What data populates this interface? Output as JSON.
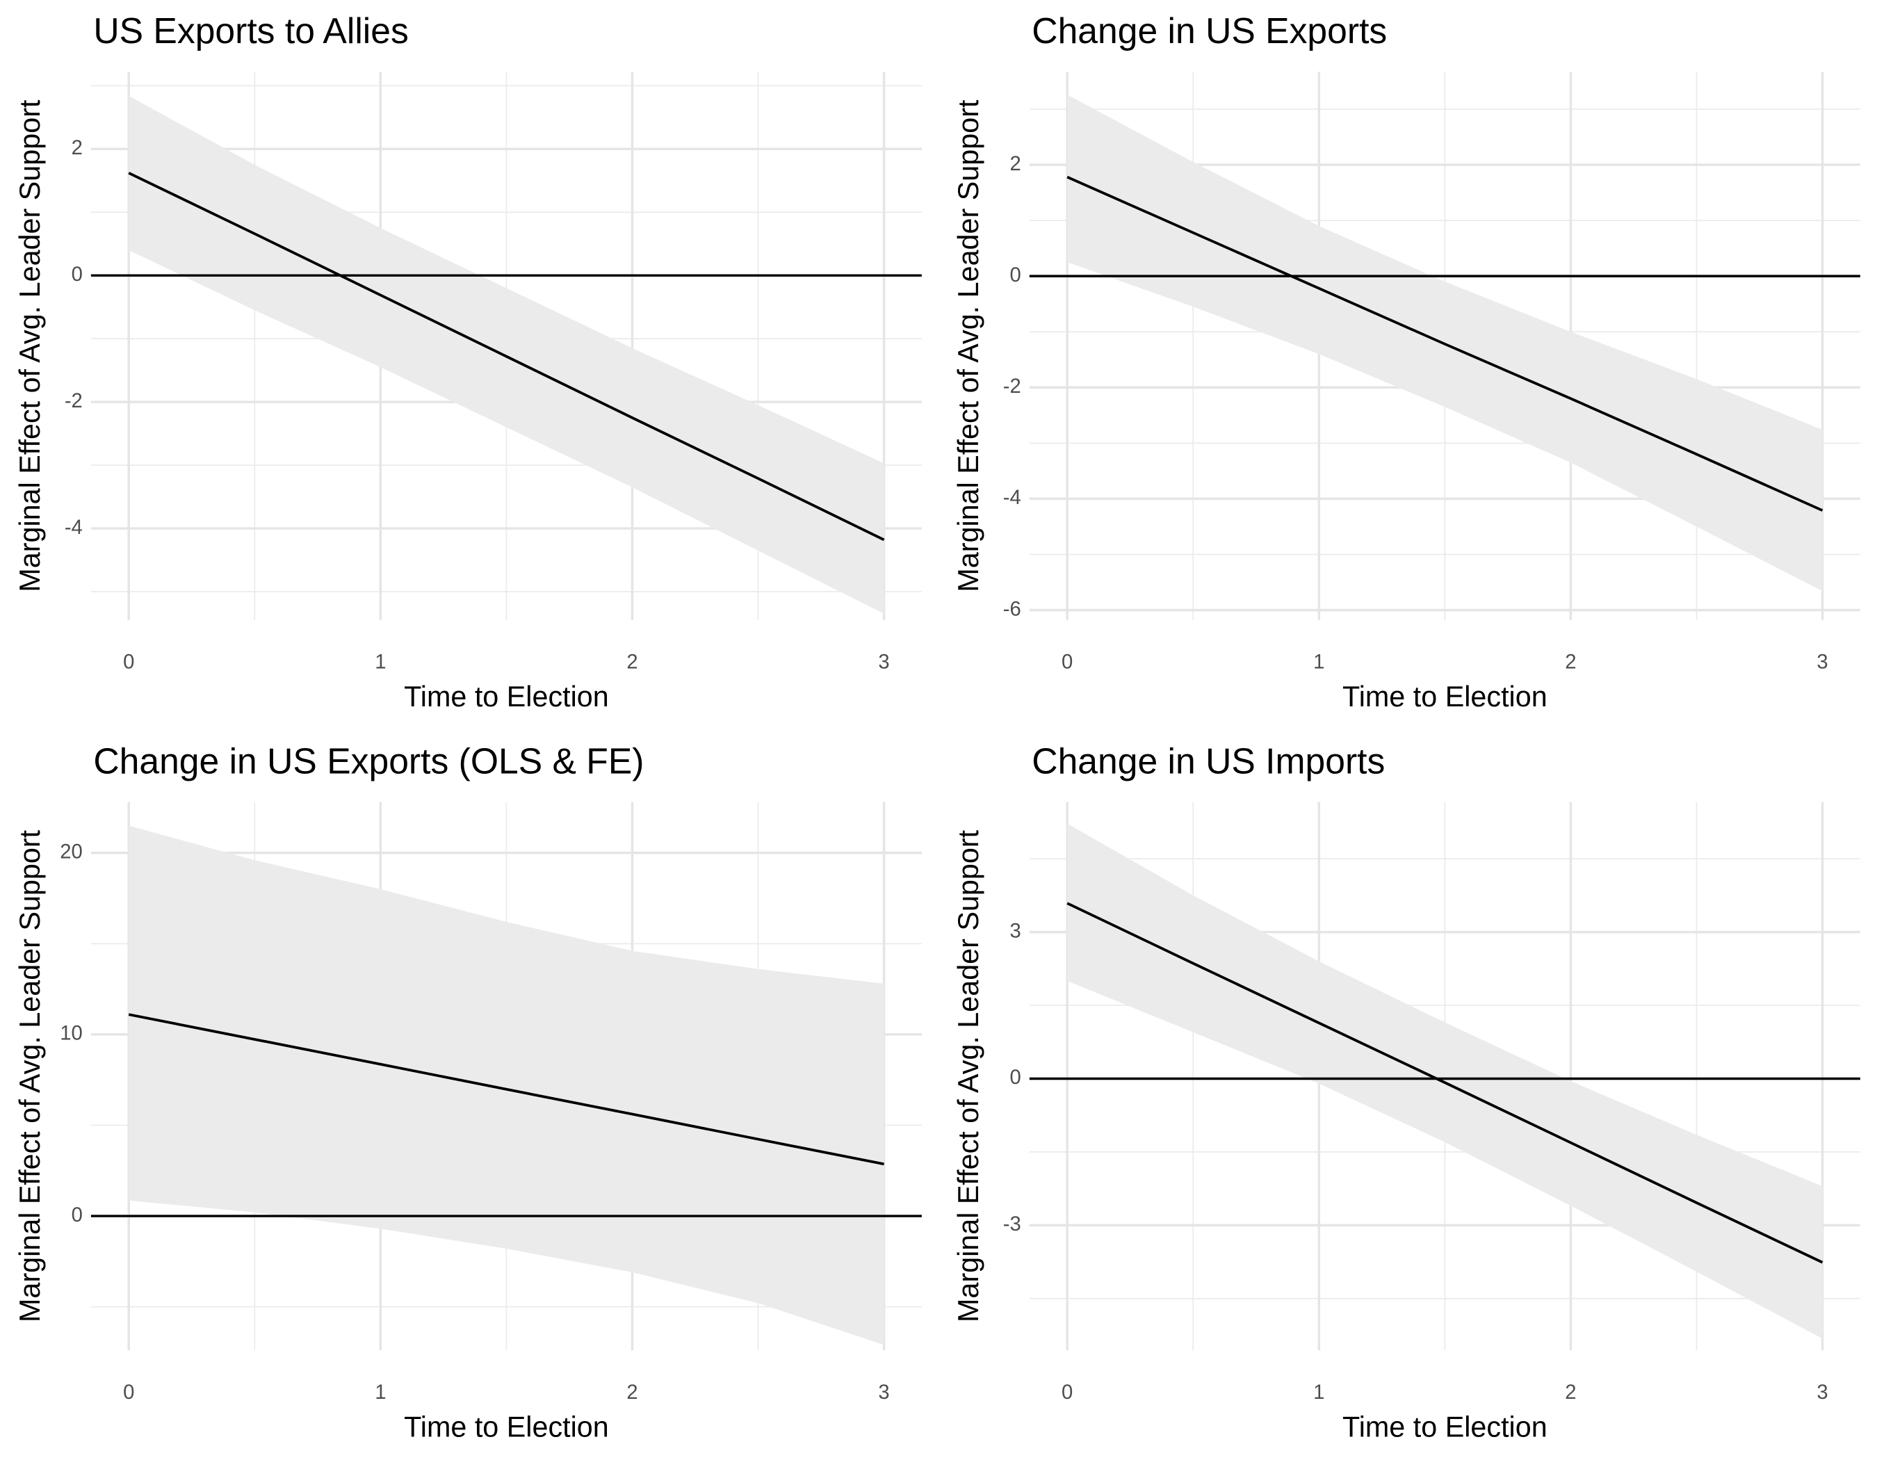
{
  "chart_data": [
    {
      "type": "line",
      "title": "US Exports to Allies",
      "xlabel": "Time to Election",
      "ylabel": "Marginal Effect of Avg. Leader Support",
      "x": [
        0,
        0.5,
        1,
        1.5,
        2,
        2.5,
        3
      ],
      "values": [
        1.62,
        0.66,
        -0.31,
        -1.28,
        -2.25,
        -3.21,
        -4.18
      ],
      "upper": [
        2.84,
        1.75,
        0.75,
        -0.2,
        -1.15,
        -2.05,
        -2.97
      ],
      "lower": [
        0.4,
        -0.55,
        -1.45,
        -2.4,
        -3.35,
        -4.35,
        -5.35
      ],
      "color": "#000000",
      "band_color": "#ebebeb",
      "hline": 0,
      "xlim": [
        -0.15,
        3.15
      ],
      "ylim": [
        -5.45,
        3.22
      ],
      "xticks": [
        0,
        1,
        2,
        3
      ],
      "yticks": [
        -4,
        -2,
        0,
        2
      ],
      "xminor": [
        0.5,
        1.5,
        2.5
      ],
      "yminor": [
        -5,
        -3,
        -1,
        1,
        3
      ],
      "grid": true
    },
    {
      "type": "line",
      "title": "Change in US Exports",
      "xlabel": "Time to Election",
      "ylabel": "Marginal Effect of Avg. Leader Support",
      "x": [
        0,
        0.5,
        1,
        1.5,
        2,
        2.5,
        3
      ],
      "values": [
        1.78,
        0.78,
        -0.22,
        -1.22,
        -2.2,
        -3.2,
        -4.21
      ],
      "upper": [
        3.26,
        2.05,
        0.9,
        -0.1,
        -1.0,
        -1.85,
        -2.76
      ],
      "lower": [
        0.25,
        -0.55,
        -1.4,
        -2.35,
        -3.35,
        -4.5,
        -5.66
      ],
      "color": "#000000",
      "band_color": "#ebebeb",
      "hline": 0,
      "xlim": [
        -0.15,
        3.15
      ],
      "ylim": [
        -6.18,
        3.67
      ],
      "xticks": [
        0,
        1,
        2,
        3
      ],
      "yticks": [
        -6,
        -4,
        -2,
        0,
        2
      ],
      "xminor": [
        0.5,
        1.5,
        2.5
      ],
      "yminor": [
        -5,
        -3,
        -1,
        1,
        3
      ],
      "grid": true
    },
    {
      "type": "line",
      "title": "Change in US Exports (OLS & FE)",
      "xlabel": "Time to Election",
      "ylabel": "Marginal Effect of Avg. Leader Support",
      "x": [
        0,
        0.5,
        1,
        1.5,
        2,
        2.5,
        3
      ],
      "values": [
        11.1,
        9.73,
        8.36,
        6.98,
        5.61,
        4.23,
        2.86
      ],
      "upper": [
        21.5,
        19.6,
        18.0,
        16.2,
        14.6,
        13.6,
        12.8
      ],
      "lower": [
        0.85,
        0.2,
        -0.7,
        -1.8,
        -3.1,
        -4.8,
        -7.1
      ],
      "color": "#000000",
      "band_color": "#ebebeb",
      "hline": 0,
      "xlim": [
        -0.15,
        3.15
      ],
      "ylim": [
        -7.4,
        22.8
      ],
      "xticks": [
        0,
        1,
        2,
        3
      ],
      "yticks": [
        0,
        10,
        20
      ],
      "xminor": [
        0.5,
        1.5,
        2.5
      ],
      "yminor": [
        -5,
        5,
        15
      ],
      "grid": true
    },
    {
      "type": "line",
      "title": "Change in US Imports",
      "xlabel": "Time to Election",
      "ylabel": "Marginal Effect of Avg. Leader Support",
      "x": [
        0,
        0.5,
        1,
        1.5,
        2,
        2.5,
        3
      ],
      "values": [
        3.59,
        2.36,
        1.14,
        -0.08,
        -1.31,
        -2.54,
        -3.76
      ],
      "upper": [
        5.22,
        3.75,
        2.4,
        1.15,
        -0.05,
        -1.15,
        -2.2
      ],
      "lower": [
        2.0,
        0.95,
        -0.1,
        -1.3,
        -2.6,
        -3.95,
        -5.32
      ],
      "color": "#000000",
      "band_color": "#ebebeb",
      "hline": 0,
      "xlim": [
        -0.15,
        3.15
      ],
      "ylim": [
        -5.56,
        5.66
      ],
      "xticks": [
        0,
        1,
        2,
        3
      ],
      "yticks": [
        -3,
        0,
        3
      ],
      "xminor": [
        0.5,
        1.5,
        2.5
      ],
      "yminor": [
        -4.5,
        -1.5,
        1.5,
        4.5
      ],
      "grid": true
    }
  ]
}
